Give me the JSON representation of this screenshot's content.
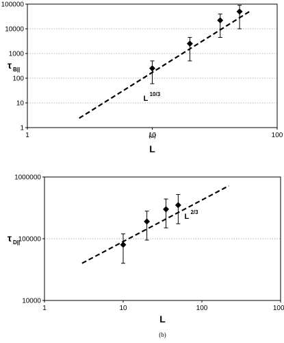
{
  "chart_data": [
    {
      "id": "a",
      "type": "scatter",
      "caption": "(a)",
      "xlabel": "L",
      "ylabel": "τ",
      "ylabel_sub": "B||",
      "xscale": "log",
      "yscale": "log",
      "xlim": [
        1,
        100
      ],
      "ylim": [
        1,
        100000
      ],
      "x_ticks": [
        "1",
        "10",
        "100"
      ],
      "y_ticks": [
        "1",
        "10",
        "100",
        "1000",
        "10000",
        "100000"
      ],
      "grid": "horizontal dotted",
      "points": [
        {
          "x": 10,
          "y": 250,
          "err_low": 60,
          "err_high": 500
        },
        {
          "x": 20,
          "y": 2500,
          "err_low": 500,
          "err_high": 4500
        },
        {
          "x": 35,
          "y": 22000,
          "err_low": 4500,
          "err_high": 40000
        },
        {
          "x": 50,
          "y": 50000,
          "err_low": 10000,
          "err_high": 90000
        }
      ],
      "fit_line": {
        "x": [
          2.6,
          60
        ],
        "y": [
          2.4,
          50000
        ],
        "style": "dashed"
      },
      "annotation": {
        "text": "L",
        "sup": "10/3",
        "x": 8.5,
        "y": 12
      }
    },
    {
      "id": "b",
      "type": "scatter",
      "caption": "(b)",
      "xlabel": "L",
      "ylabel": "τ",
      "ylabel_sub": "D||",
      "xscale": "log",
      "yscale": "log",
      "xlim": [
        1,
        1000
      ],
      "ylim": [
        10000,
        1000000
      ],
      "x_ticks": [
        "1",
        "10",
        "100",
        "1000"
      ],
      "y_ticks": [
        "10000",
        "100000",
        "1000000"
      ],
      "grid": "horizontal dotted",
      "points": [
        {
          "x": 10,
          "y": 80000,
          "err_low": 40000,
          "err_high": 120000
        },
        {
          "x": 20,
          "y": 190000,
          "err_low": 95000,
          "err_high": 280000
        },
        {
          "x": 35,
          "y": 300000,
          "err_low": 150000,
          "err_high": 440000
        },
        {
          "x": 50,
          "y": 350000,
          "err_low": 175000,
          "err_high": 520000
        }
      ],
      "fit_line": {
        "x": [
          3,
          220
        ],
        "y": [
          40000,
          720000
        ],
        "style": "dashed"
      },
      "annotation": {
        "text": "L",
        "sup": "2/3",
        "x": 60,
        "y": 210000
      }
    }
  ]
}
